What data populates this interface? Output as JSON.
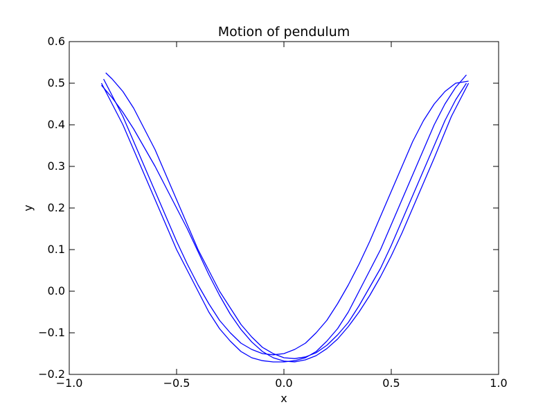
{
  "chart_data": {
    "type": "line",
    "title": "Motion of pendulum",
    "xlabel": "x",
    "ylabel": "y",
    "xlim": [
      -1.0,
      1.0
    ],
    "ylim": [
      -0.2,
      0.6
    ],
    "x_ticks": [
      -1.0,
      -0.5,
      0.0,
      0.5,
      1.0
    ],
    "x_tick_labels": [
      "−1.0",
      "−0.5",
      "0.0",
      "0.5",
      "1.0"
    ],
    "y_ticks": [
      -0.2,
      -0.1,
      0.0,
      0.1,
      0.2,
      0.3,
      0.4,
      0.5,
      0.6
    ],
    "y_tick_labels": [
      "−0.2",
      "−0.1",
      "0.0",
      "0.1",
      "0.2",
      "0.3",
      "0.4",
      "0.5",
      "0.6"
    ],
    "grid": false,
    "series": [
      {
        "color": "#0000ff",
        "x": [
          -0.85,
          -0.8,
          -0.75,
          -0.7,
          -0.65,
          -0.6,
          -0.55,
          -0.5,
          -0.45,
          -0.4,
          -0.35,
          -0.3,
          -0.25,
          -0.2,
          -0.15,
          -0.1,
          -0.05,
          0.0,
          0.05,
          0.1,
          0.15,
          0.2,
          0.25,
          0.3,
          0.35,
          0.4,
          0.45,
          0.5,
          0.55,
          0.6,
          0.65,
          0.7,
          0.75,
          0.8,
          0.85
        ],
        "y": [
          0.5,
          0.45,
          0.4,
          0.34,
          0.28,
          0.22,
          0.16,
          0.1,
          0.05,
          0.0,
          -0.05,
          -0.09,
          -0.12,
          -0.145,
          -0.16,
          -0.167,
          -0.17,
          -0.17,
          -0.167,
          -0.16,
          -0.145,
          -0.12,
          -0.09,
          -0.05,
          0.0,
          0.05,
          0.1,
          0.16,
          0.22,
          0.28,
          0.34,
          0.4,
          0.45,
          0.49,
          0.52
        ]
      },
      {
        "color": "#0000ff",
        "x": [
          0.85,
          0.8,
          0.75,
          0.7,
          0.65,
          0.6,
          0.55,
          0.5,
          0.45,
          0.4,
          0.35,
          0.3,
          0.25,
          0.2,
          0.15,
          0.1,
          0.05,
          0.0,
          -0.05,
          -0.1,
          -0.15,
          -0.2,
          -0.25,
          -0.3,
          -0.35,
          -0.4,
          -0.45,
          -0.5,
          -0.55,
          -0.6,
          -0.65,
          -0.7,
          -0.75,
          -0.8,
          -0.83
        ],
        "y": [
          0.5,
          0.46,
          0.41,
          0.35,
          0.29,
          0.23,
          0.17,
          0.11,
          0.055,
          0.01,
          -0.035,
          -0.075,
          -0.105,
          -0.13,
          -0.148,
          -0.158,
          -0.162,
          -0.16,
          -0.15,
          -0.135,
          -0.11,
          -0.08,
          -0.04,
          0.0,
          0.05,
          0.1,
          0.16,
          0.22,
          0.28,
          0.34,
          0.39,
          0.44,
          0.48,
          0.51,
          0.525
        ]
      },
      {
        "color": "#0000ff",
        "x": [
          -0.84,
          -0.8,
          -0.75,
          -0.7,
          -0.65,
          -0.6,
          -0.55,
          -0.5,
          -0.45,
          -0.4,
          -0.35,
          -0.3,
          -0.25,
          -0.2,
          -0.15,
          -0.1,
          -0.05,
          0.0,
          0.05,
          0.1,
          0.15,
          0.2,
          0.25,
          0.3,
          0.35,
          0.4,
          0.45,
          0.5,
          0.55,
          0.6,
          0.65,
          0.7,
          0.75,
          0.8,
          0.86
        ],
        "y": [
          0.51,
          0.47,
          0.42,
          0.36,
          0.3,
          0.24,
          0.18,
          0.12,
          0.065,
          0.015,
          -0.03,
          -0.07,
          -0.1,
          -0.125,
          -0.14,
          -0.15,
          -0.153,
          -0.15,
          -0.14,
          -0.125,
          -0.1,
          -0.07,
          -0.03,
          0.015,
          0.065,
          0.12,
          0.18,
          0.24,
          0.3,
          0.36,
          0.41,
          0.45,
          0.48,
          0.5,
          0.505
        ]
      },
      {
        "color": "#0000ff",
        "x": [
          0.86,
          0.82,
          0.78,
          0.74,
          0.7,
          0.65,
          0.6,
          0.55,
          0.5,
          0.45,
          0.4,
          0.35,
          0.3,
          0.25,
          0.2,
          0.15,
          0.1,
          0.05,
          0.0,
          -0.05,
          -0.1,
          -0.15,
          -0.2,
          -0.25,
          -0.3,
          -0.35,
          -0.4,
          -0.45,
          -0.5,
          -0.55,
          -0.6,
          -0.65,
          -0.7,
          -0.75,
          -0.8,
          -0.85
        ],
        "y": [
          0.5,
          0.46,
          0.42,
          0.37,
          0.32,
          0.26,
          0.2,
          0.14,
          0.085,
          0.035,
          -0.01,
          -0.05,
          -0.085,
          -0.115,
          -0.138,
          -0.155,
          -0.165,
          -0.17,
          -0.168,
          -0.16,
          -0.145,
          -0.122,
          -0.092,
          -0.055,
          -0.01,
          0.04,
          0.095,
          0.15,
          0.2,
          0.25,
          0.3,
          0.345,
          0.39,
          0.43,
          0.465,
          0.495
        ]
      }
    ]
  }
}
